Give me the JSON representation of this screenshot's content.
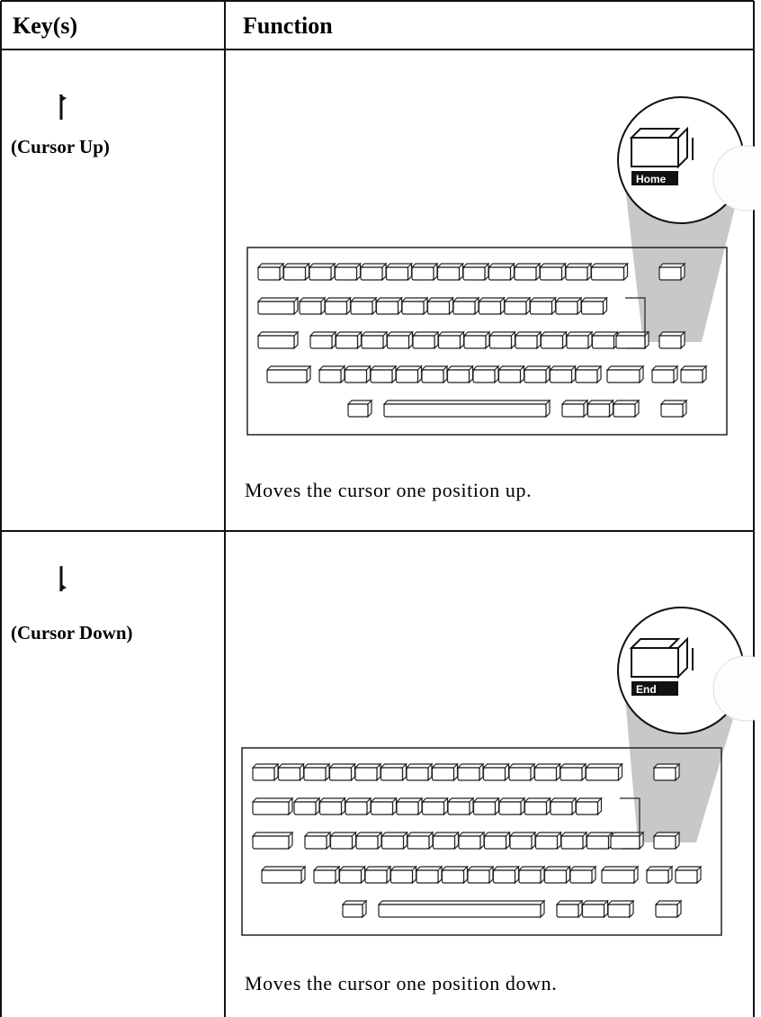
{
  "table": {
    "header": [
      "Key(s)",
      "Function"
    ],
    "rows": [
      {
        "key": "(Cursor Up)",
        "key_label": "Home",
        "description": "Moves the cursor one position up."
      },
      {
        "key": "(Cursor Down)",
        "key_label": "End",
        "description": "Moves the cursor one position down."
      }
    ]
  }
}
